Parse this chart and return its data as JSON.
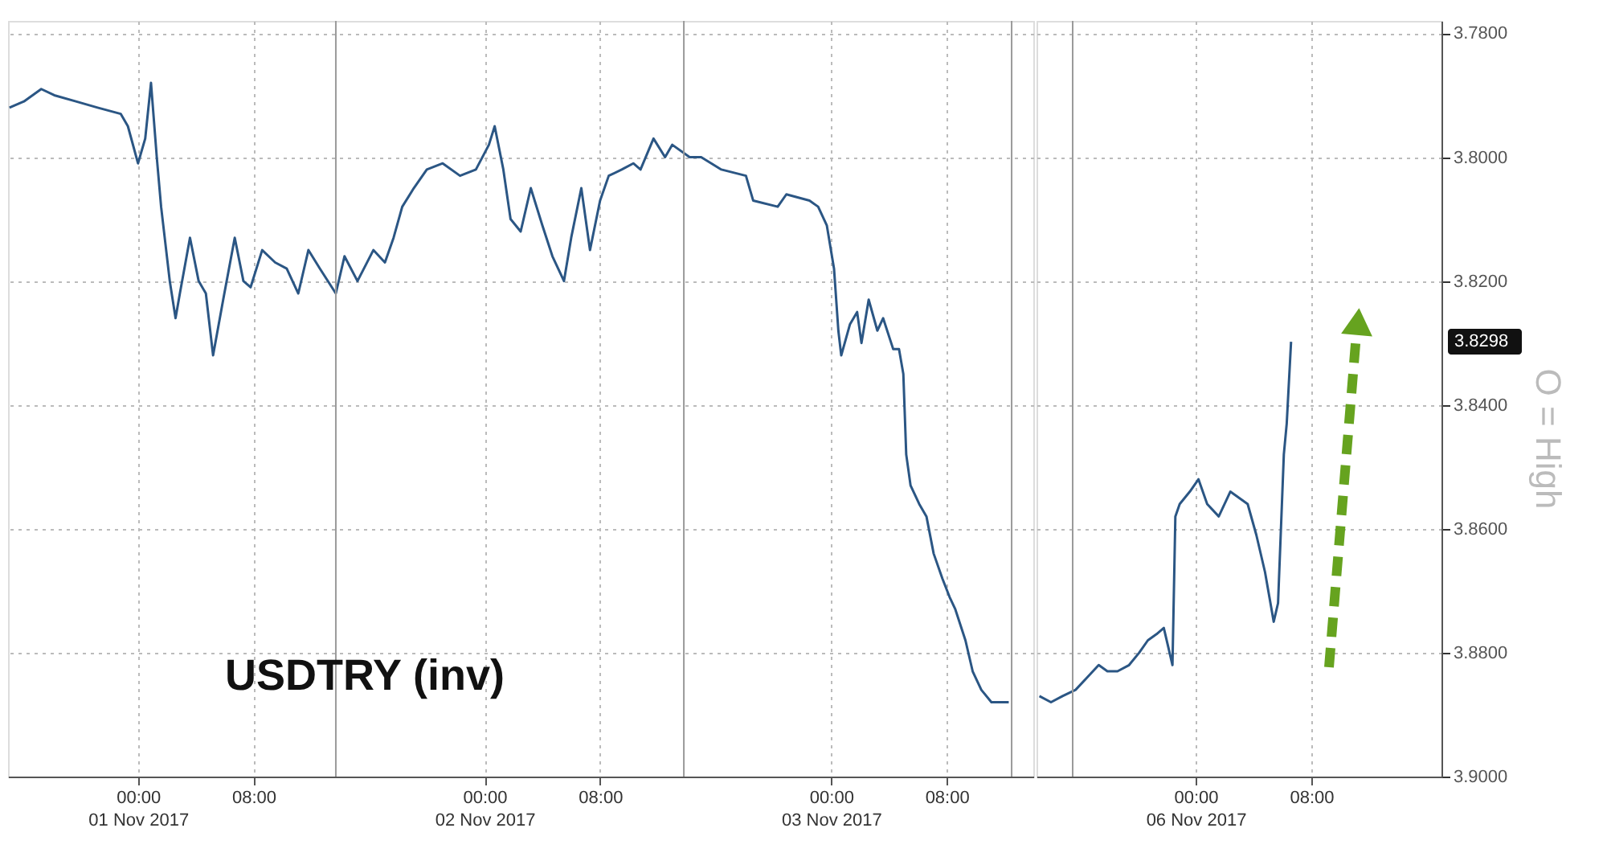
{
  "chart_data": [
    {
      "type": "line",
      "title": "USDTRY (inv)",
      "tick_labels": "x",
      "x": [
        "2017-10-31T15:06",
        "2017-10-31T16:06",
        "2017-10-31T17:18",
        "2017-10-31T18:12",
        "2017-10-31T19:42",
        "2017-10-31T21:12",
        "2017-10-31T22:48",
        "2017-10-31T23:18",
        "2017-11-01T00:00",
        "2017-11-01T00:30",
        "2017-11-01T00:54",
        "2017-11-01T01:18",
        "2017-11-01T01:36",
        "2017-11-01T02:12",
        "2017-11-01T02:36",
        "2017-11-01T02:54",
        "2017-11-01T03:36",
        "2017-11-01T04:12",
        "2017-11-01T04:42",
        "2017-11-01T05:12",
        "2017-11-01T05:54",
        "2017-11-01T06:42",
        "2017-11-01T07:18",
        "2017-11-01T07:48",
        "2017-11-01T08:36",
        "2017-11-01T09:30",
        "2017-11-01T10:18",
        "2017-11-01T11:06",
        "2017-11-01T11:48",
        "2017-11-01T12:36",
        "2017-11-01T13:42",
        "2017-11-01T14:18",
        "2017-11-01T15:12",
        "2017-11-01T16:18",
        "2017-11-01T17:06",
        "2017-11-01T17:42",
        "2017-11-01T18:18",
        "2017-11-01T19:06",
        "2017-11-01T20:00",
        "2017-11-01T21:06",
        "2017-11-01T22:18",
        "2017-11-01T23:24",
        "2017-11-02T00:18",
        "2017-11-02T00:42",
        "2017-11-02T01:18",
        "2017-11-02T01:48",
        "2017-11-02T02:30",
        "2017-11-02T03:12",
        "2017-11-02T04:00",
        "2017-11-02T04:42",
        "2017-11-02T05:30",
        "2017-11-02T06:00",
        "2017-11-02T06:42",
        "2017-11-02T07:18",
        "2017-11-02T08:00",
        "2017-11-02T08:36",
        "2017-11-02T09:30",
        "2017-11-02T10:18",
        "2017-11-02T10:48",
        "2017-11-02T11:42",
        "2017-11-02T12:30",
        "2017-11-02T13:00",
        "2017-11-02T14:12",
        "2017-11-02T15:00",
        "2017-11-02T16:24",
        "2017-11-02T18:06",
        "2017-11-02T18:36",
        "2017-11-02T20:18",
        "2017-11-02T20:54",
        "2017-11-02T22:30",
        "2017-11-02T23:06",
        "2017-11-02T23:42",
        "2017-11-03T00:12",
        "2017-11-03T00:30",
        "2017-11-03T00:42",
        "2017-11-03T01:18",
        "2017-11-03T01:48",
        "2017-11-03T02:06",
        "2017-11-03T02:36",
        "2017-11-03T03:12",
        "2017-11-03T03:36",
        "2017-11-03T04:18",
        "2017-11-03T04:42",
        "2017-11-03T05:00",
        "2017-11-03T05:12",
        "2017-11-03T05:30",
        "2017-11-03T06:06",
        "2017-11-03T06:36",
        "2017-11-03T07:06",
        "2017-11-03T07:42",
        "2017-11-03T08:12",
        "2017-11-03T08:36",
        "2017-11-03T09:18",
        "2017-11-03T09:48",
        "2017-11-03T10:24",
        "2017-11-03T11:06",
        "2017-11-03T11:48",
        "2017-11-03T12:18"
      ],
      "series": [
        {
          "color": "#2b5684",
          "values": [
            3.792,
            3.791,
            3.789,
            3.79,
            3.791,
            3.792,
            3.793,
            3.795,
            3.801,
            3.797,
            3.788,
            3.8,
            3.808,
            3.82,
            3.826,
            3.822,
            3.813,
            3.82,
            3.822,
            3.832,
            3.823,
            3.813,
            3.82,
            3.821,
            3.815,
            3.817,
            3.818,
            3.822,
            3.815,
            3.818,
            3.822,
            3.816,
            3.82,
            3.815,
            3.817,
            3.813,
            3.808,
            3.805,
            3.802,
            3.801,
            3.803,
            3.802,
            3.798,
            3.795,
            3.802,
            3.81,
            3.812,
            3.805,
            3.811,
            3.816,
            3.82,
            3.813,
            3.805,
            3.815,
            3.807,
            3.803,
            3.802,
            3.801,
            3.802,
            3.797,
            3.8,
            3.798,
            3.8,
            3.8,
            3.802,
            3.803,
            3.807,
            3.808,
            3.806,
            3.807,
            3.808,
            3.811,
            3.818,
            3.828,
            3.832,
            3.827,
            3.825,
            3.83,
            3.823,
            3.828,
            3.826,
            3.831,
            3.831,
            3.835,
            3.848,
            3.853,
            3.856,
            3.858,
            3.864,
            3.868,
            3.871,
            3.873,
            3.878,
            3.883,
            3.886,
            3.888,
            3.888,
            3.888
          ]
        }
      ],
      "xlim": [
        "2017-10-31T15:00",
        "2017-11-03T14:00"
      ],
      "ylim": [
        3.9,
        3.778
      ],
      "xticks": [
        {
          "value": "2017-11-01T00:00",
          "label": "00:00\n01 Nov 2017"
        },
        {
          "value": "2017-11-01T08:00",
          "label": "08:00"
        },
        {
          "value": "2017-11-02T00:00",
          "label": "00:00\n02 Nov 2017"
        },
        {
          "value": "2017-11-02T08:00",
          "label": "08:00"
        },
        {
          "value": "2017-11-03T00:00",
          "label": "00:00\n03 Nov 2017"
        },
        {
          "value": "2017-11-03T08:00",
          "label": "08:00"
        }
      ],
      "yticks": [
        3.78,
        3.8,
        3.82,
        3.84,
        3.86,
        3.88,
        3.9
      ],
      "grid": true,
      "ref_lines": [
        {
          "axis": "x",
          "value": "2017-11-01T13:42",
          "color": "#9a9a9a"
        },
        {
          "axis": "x",
          "value": "2017-11-02T13:48",
          "color": "#9a9a9a"
        },
        {
          "axis": "x",
          "value": "2017-11-03T12:30",
          "color": "#9a9a9a"
        }
      ]
    },
    {
      "type": "line",
      "annotations": [
        "3.8298",
        "O = High"
      ],
      "x": [
        "2017-11-05T13:12",
        "2017-11-05T14:00",
        "2017-11-05T14:48",
        "2017-11-05T15:42",
        "2017-11-05T16:30",
        "2017-11-05T17:18",
        "2017-11-05T17:54",
        "2017-11-05T18:36",
        "2017-11-05T19:24",
        "2017-11-05T20:06",
        "2017-11-05T20:42",
        "2017-11-05T21:18",
        "2017-11-05T21:48",
        "2017-11-05T22:06",
        "2017-11-05T22:24",
        "2017-11-05T22:36",
        "2017-11-05T22:54",
        "2017-11-05T23:36",
        "2017-11-06T00:12",
        "2017-11-06T00:48",
        "2017-11-06T01:36",
        "2017-11-06T02:24",
        "2017-11-06T03:36",
        "2017-11-06T04:12",
        "2017-11-06T04:48",
        "2017-11-06T05:24",
        "2017-11-06T05:42",
        "2017-11-06T06:06",
        "2017-11-06T06:18",
        "2017-11-06T06:36"
      ],
      "series": [
        {
          "color": "#2b5684",
          "values": [
            3.887,
            3.888,
            3.887,
            3.886,
            3.884,
            3.882,
            3.883,
            3.883,
            3.882,
            3.88,
            3.878,
            3.877,
            3.876,
            3.879,
            3.882,
            3.858,
            3.856,
            3.854,
            3.852,
            3.856,
            3.858,
            3.854,
            3.856,
            3.861,
            3.867,
            3.875,
            3.872,
            3.848,
            3.843,
            3.8298
          ]
        }
      ],
      "xlim": [
        "2017-11-05T13:00",
        "2017-11-06T17:00"
      ],
      "ylim": [
        3.9,
        3.778
      ],
      "xticks": [
        {
          "value": "2017-11-06T00:00",
          "label": "00:00\n06 Nov 2017"
        },
        {
          "value": "2017-11-06T08:00",
          "label": "08:00"
        }
      ],
      "yticks": [
        {
          "value": 3.78,
          "label": "3.7800"
        },
        {
          "value": 3.8,
          "label": "3.8000"
        },
        {
          "value": 3.82,
          "label": "3.8200"
        },
        {
          "value": 3.84,
          "label": "3.8400"
        },
        {
          "value": 3.86,
          "label": "3.8600"
        },
        {
          "value": 3.88,
          "label": "3.8800"
        },
        {
          "value": 3.9,
          "label": "3.9000"
        }
      ],
      "grid": true,
      "ref_lines": [
        {
          "axis": "x",
          "value": "2017-11-05T15:30",
          "color": "#9a9a9a"
        }
      ]
    }
  ]
}
